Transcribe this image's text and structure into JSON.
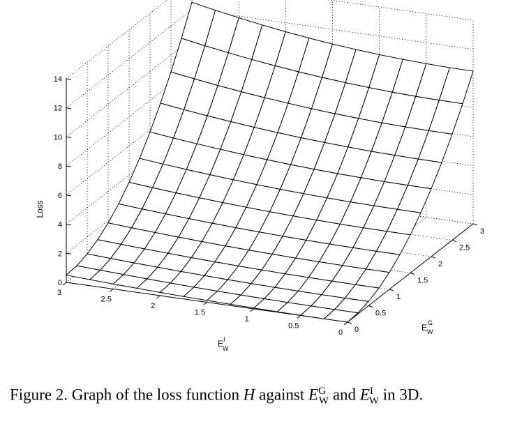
{
  "chart_data": {
    "type": "surface",
    "zlabel": "Loss",
    "xlabel": "E_W^I",
    "ylabel": "E_W^G",
    "xlim": [
      0,
      3
    ],
    "ylim": [
      0,
      3
    ],
    "zlim": [
      0,
      14
    ],
    "xticks": [
      "0",
      "0.5",
      "1",
      "1.5",
      "2",
      "2.5",
      "3"
    ],
    "yticks": [
      "0",
      "0.5",
      "1",
      "1.5",
      "2",
      "2.5",
      "3"
    ],
    "zticks": [
      "0",
      "2",
      "4",
      "6",
      "8",
      "10",
      "12",
      "14"
    ],
    "grid": true,
    "surface": {
      "x_range": [
        0,
        3
      ],
      "y_range": [
        0,
        3
      ],
      "samples": 13,
      "corner_values": {
        "x0_y0": 0,
        "x3_y0": 0.5,
        "x0_y3": 10.5,
        "x3_y3": 12.5
      }
    }
  },
  "caption": {
    "prefix": "Figure 2. Graph of the loss function ",
    "h": "H",
    "middle": " against ",
    "e1": "E",
    "e1_sub": "W",
    "e1_sup": "G",
    "and": " and ",
    "e2": "E",
    "e2_sub": "W",
    "e2_sup": "I",
    "suffix": " in 3D."
  }
}
